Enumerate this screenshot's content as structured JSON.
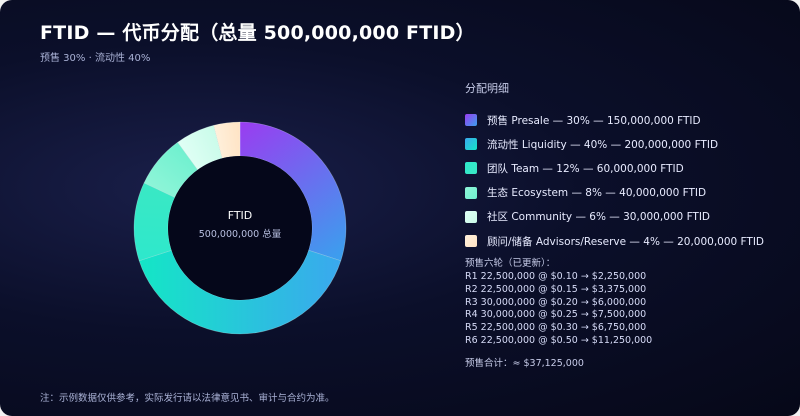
{
  "title": "FTID — 代币分配（总量 500,000,000 FTID）",
  "subtitle": "预售 30% · 流动性 40%",
  "center_label": "FTID",
  "center_sublabel": "500,000,000 总量",
  "legend_title": "分配明细",
  "presale": {
    "title": "预售六轮（已更新）：",
    "rounds": [
      "R1 22,500,000 @ $0.10 → $2,250,000",
      "R2 22,500,000 @ $0.15 → $3,375,000",
      "R3 30,000,000 @ $0.20 → $6,000,000",
      "R4 30,000,000 @ $0.25 → $7,500,000",
      "R5 22,500,000 @ $0.30 → $6,750,000",
      "R6 22,500,000 @ $0.50 → $11,250,000"
    ],
    "total": "预售合计：≈ $37,125,000"
  },
  "footnote": "注：示例数据仅供参考，实际发行请以法律意见书、审计与合约为准。",
  "chart_data": {
    "type": "pie",
    "title": "FTID — 代币分配（总量 500,000,000 FTID）",
    "total_supply": 500000000,
    "donut": true,
    "categories": [
      "预售 Presale",
      "流动性 Liquidity",
      "团队 Team",
      "生态 Ecosystem",
      "社区 Community",
      "顾问/储备 Advisors/Reserve"
    ],
    "values": [
      30,
      40,
      12,
      8,
      6,
      4
    ],
    "tokens": [
      150000000,
      200000000,
      60000000,
      40000000,
      30000000,
      20000000
    ],
    "legend_labels": [
      "预售  Presale — 30% — 150,000,000 FTID",
      "流动性  Liquidity — 40% — 200,000,000 FTID",
      "团队  Team — 12% — 60,000,000 FTID",
      "生态  Ecosystem — 8% — 40,000,000 FTID",
      "社区  Community — 6% — 30,000,000 FTID",
      "顾问/储备  Advisors/Reserve — 4% — 20,000,000 FTID"
    ],
    "colors": [
      [
        "#9a3cf0",
        "#3aa0ee"
      ],
      [
        "#3aa8ee",
        "#14e6c6"
      ],
      [
        "#2ee8cc",
        "#3ae8c4"
      ],
      [
        "#8ff5d8",
        "#6ff0cf"
      ],
      [
        "#e0fff5",
        "#c9fbe9"
      ],
      [
        "#fff0dc",
        "#ffe3c4"
      ]
    ],
    "legend_placement": "right"
  }
}
